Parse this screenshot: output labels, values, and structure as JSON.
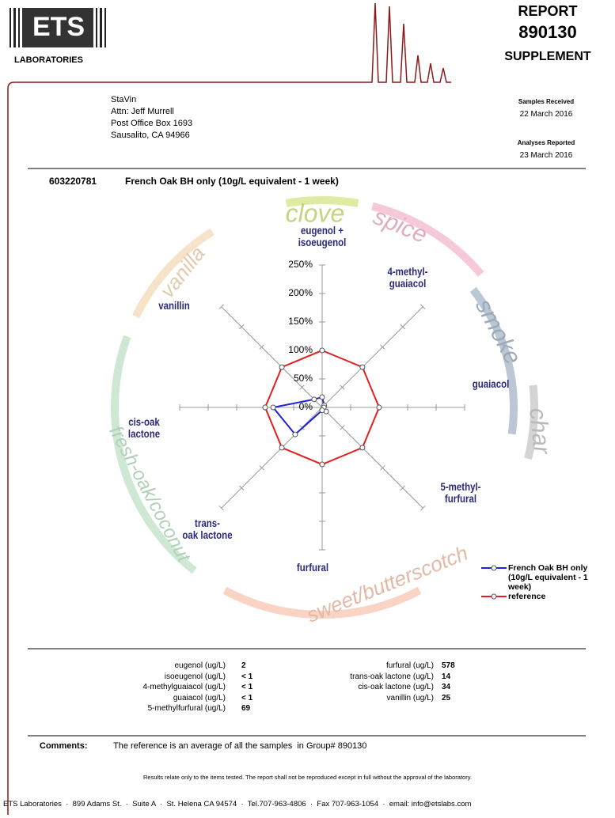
{
  "header": {
    "lab": "LABORATORIES",
    "report_label": "REPORT",
    "report_number": "890130",
    "supplement": "SUPPLEMENT"
  },
  "client": {
    "lines": [
      "StaVin",
      "Attn: Jeff Murrell",
      "Post Office Box 1693",
      "Sausalito, CA 94966"
    ]
  },
  "dates": {
    "received_label": "Samples Received",
    "received": "22 March 2016",
    "reported_label": "Analyses Reported",
    "reported": "23 March 2016"
  },
  "sample": {
    "id": "603220781",
    "description": "French Oak BH only (10g/L equivalent - 1 week)"
  },
  "chart_data": {
    "type": "radar",
    "categories": [
      "eugenol +\nisoeugenol",
      "4-methyl-\nguaiacol",
      "guaiacol",
      "5-methyl-\nfurfural",
      "furfural",
      "trans-\noak lactone",
      "cis-oak\nlactone",
      "vanillin"
    ],
    "series": [
      {
        "name": "French Oak BH only (10g/L equivalent - 1 week)",
        "color": "#1f1fe0",
        "values": [
          18,
          5,
          3,
          10,
          5,
          67,
          86,
          20
        ]
      },
      {
        "name": "reference",
        "color": "#e01f1f",
        "values": [
          100,
          100,
          100,
          100,
          100,
          100,
          100,
          100
        ]
      }
    ],
    "ylim": [
      0,
      250
    ],
    "yticks": [
      {
        "value": 0,
        "label": "0%"
      },
      {
        "value": 50,
        "label": "50%"
      },
      {
        "value": 100,
        "label": "100%"
      },
      {
        "value": 150,
        "label": "150%"
      },
      {
        "value": 200,
        "label": "200%"
      },
      {
        "value": 250,
        "label": "250%"
      }
    ],
    "flavor_groups": [
      {
        "name": "clove",
        "color": "#d6e68a"
      },
      {
        "name": "spice",
        "color": "#f3bcd0"
      },
      {
        "name": "smoke",
        "color": "#aab9c9"
      },
      {
        "name": "char",
        "color": "#c9c9c9"
      },
      {
        "name": "sweet/butterscotch",
        "color": "#f7c8b4"
      },
      {
        "name": "fresh-oak/coconut",
        "color": "#c2e2c8"
      },
      {
        "name": "vanilla",
        "color": "#f5dcbc"
      }
    ]
  },
  "results": {
    "left": [
      [
        "eugenol (ug/L)",
        2
      ],
      [
        "isoeugenol (ug/L)",
        "< 1"
      ],
      [
        "4-methylguaiacol (ug/L)",
        "< 1"
      ],
      [
        "guaiacol (ug/L)",
        "< 1"
      ],
      [
        "5-methylfurfural (ug/L)",
        69
      ]
    ],
    "right": [
      [
        "furfural (ug/L)",
        578
      ],
      [
        "trans-oak lactone (ug/L)",
        14
      ],
      [
        "cis-oak lactone (ug/L)",
        34
      ],
      [
        "vanillin (ug/L)",
        25
      ]
    ]
  },
  "comments": {
    "label": "Comments:",
    "text": "The reference is an average of all the samples  in Group# 890130"
  },
  "disclaimer": "Results relate only to the items tested. The report shall not be reproduced except in full without the approval of the laboratory.",
  "footer": "ETS Laboratories  ·  899 Adams St.  ·  Suite A  ·  St. Helena CA 94574  ·  Tel.707-963-4806  ·  Fax 707-963-1054  ·  email: info@etslabs.com"
}
